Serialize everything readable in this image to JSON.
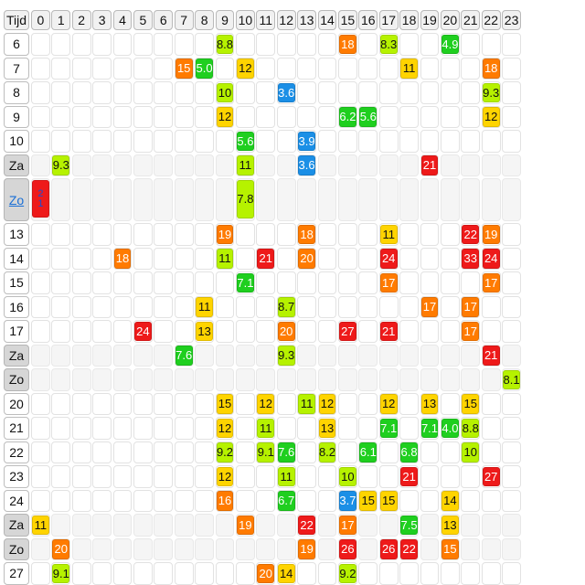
{
  "header": {
    "corner_label": "Tijd",
    "hours": [
      "0",
      "1",
      "2",
      "3",
      "4",
      "5",
      "6",
      "7",
      "8",
      "9",
      "10",
      "11",
      "12",
      "13",
      "14",
      "15",
      "16",
      "17",
      "18",
      "19",
      "20",
      "21",
      "22",
      "23"
    ]
  },
  "colors": {
    "lime": "#b6f200",
    "green": "#1fcf1f",
    "yellow": "#ffd400",
    "orange": "#ff7b00",
    "red": "#ee1a1a",
    "blue": "#1b8fe6",
    "weekend_row": "#f5f5f5"
  },
  "rows": [
    {
      "label": "6",
      "weekend": false,
      "cells": [
        {
          "h": 9,
          "v": "8.8",
          "c": "lime"
        },
        {
          "h": 15,
          "v": "18",
          "c": "orange"
        },
        {
          "h": 17,
          "v": "8.3",
          "c": "lime"
        },
        {
          "h": 20,
          "v": "4.9",
          "c": "green"
        }
      ]
    },
    {
      "label": "7",
      "weekend": false,
      "cells": [
        {
          "h": 7,
          "v": "15",
          "c": "orange"
        },
        {
          "h": 8,
          "v": "5.0",
          "c": "green"
        },
        {
          "h": 10,
          "v": "12",
          "c": "yellow"
        },
        {
          "h": 18,
          "v": "11",
          "c": "yellow"
        },
        {
          "h": 22,
          "v": "18",
          "c": "orange"
        }
      ]
    },
    {
      "label": "8",
      "weekend": false,
      "cells": [
        {
          "h": 9,
          "v": "10",
          "c": "lime"
        },
        {
          "h": 12,
          "v": "3.6",
          "c": "blue"
        },
        {
          "h": 22,
          "v": "9.3",
          "c": "lime"
        }
      ]
    },
    {
      "label": "9",
      "weekend": false,
      "cells": [
        {
          "h": 9,
          "v": "12",
          "c": "yellow"
        },
        {
          "h": 15,
          "v": "6.2",
          "c": "green"
        },
        {
          "h": 16,
          "v": "5.6",
          "c": "green"
        },
        {
          "h": 22,
          "v": "12",
          "c": "yellow"
        }
      ]
    },
    {
      "label": "10",
      "weekend": false,
      "cells": [
        {
          "h": 10,
          "v": "5.6",
          "c": "green"
        },
        {
          "h": 13,
          "v": "3.9",
          "c": "blue"
        }
      ]
    },
    {
      "label": "Za",
      "weekend": true,
      "cells": [
        {
          "h": 1,
          "v": "9.3",
          "c": "lime"
        },
        {
          "h": 10,
          "v": "11",
          "c": "lime"
        },
        {
          "h": 13,
          "v": "3.6",
          "c": "blue"
        },
        {
          "h": 19,
          "v": "21",
          "c": "red"
        }
      ]
    },
    {
      "label": "Zo",
      "weekend": true,
      "tall": true,
      "link": true,
      "cells": [
        {
          "h": 0,
          "v": "21",
          "c": "red",
          "vert": true
        },
        {
          "h": 10,
          "v": "7.8",
          "c": "lime"
        }
      ]
    },
    {
      "label": "13",
      "weekend": false,
      "cells": [
        {
          "h": 9,
          "v": "19",
          "c": "orange"
        },
        {
          "h": 13,
          "v": "18",
          "c": "orange"
        },
        {
          "h": 17,
          "v": "11",
          "c": "yellow"
        },
        {
          "h": 21,
          "v": "22",
          "c": "red"
        },
        {
          "h": 22,
          "v": "19",
          "c": "orange"
        }
      ]
    },
    {
      "label": "14",
      "weekend": false,
      "cells": [
        {
          "h": 4,
          "v": "18",
          "c": "orange"
        },
        {
          "h": 9,
          "v": "11",
          "c": "lime"
        },
        {
          "h": 11,
          "v": "21",
          "c": "red"
        },
        {
          "h": 13,
          "v": "20",
          "c": "orange"
        },
        {
          "h": 17,
          "v": "24",
          "c": "red"
        },
        {
          "h": 21,
          "v": "33",
          "c": "red"
        },
        {
          "h": 22,
          "v": "24",
          "c": "red"
        }
      ]
    },
    {
      "label": "15",
      "weekend": false,
      "cells": [
        {
          "h": 10,
          "v": "7.1",
          "c": "green"
        },
        {
          "h": 17,
          "v": "17",
          "c": "orange"
        },
        {
          "h": 22,
          "v": "17",
          "c": "orange"
        }
      ]
    },
    {
      "label": "16",
      "weekend": false,
      "cells": [
        {
          "h": 8,
          "v": "11",
          "c": "yellow"
        },
        {
          "h": 12,
          "v": "8.7",
          "c": "lime"
        },
        {
          "h": 19,
          "v": "17",
          "c": "orange"
        },
        {
          "h": 21,
          "v": "17",
          "c": "orange"
        }
      ]
    },
    {
      "label": "17",
      "weekend": false,
      "cells": [
        {
          "h": 5,
          "v": "24",
          "c": "red"
        },
        {
          "h": 8,
          "v": "13",
          "c": "yellow"
        },
        {
          "h": 12,
          "v": "20",
          "c": "orange"
        },
        {
          "h": 15,
          "v": "27",
          "c": "red"
        },
        {
          "h": 17,
          "v": "21",
          "c": "red"
        },
        {
          "h": 21,
          "v": "17",
          "c": "orange"
        }
      ]
    },
    {
      "label": "Za",
      "weekend": true,
      "cells": [
        {
          "h": 7,
          "v": "7.6",
          "c": "green"
        },
        {
          "h": 12,
          "v": "9.3",
          "c": "lime"
        },
        {
          "h": 22,
          "v": "21",
          "c": "red"
        }
      ]
    },
    {
      "label": "Zo",
      "weekend": true,
      "cells": [
        {
          "h": 23,
          "v": "8.1",
          "c": "lime"
        }
      ]
    },
    {
      "label": "20",
      "weekend": false,
      "cells": [
        {
          "h": 9,
          "v": "15",
          "c": "yellow"
        },
        {
          "h": 11,
          "v": "12",
          "c": "yellow"
        },
        {
          "h": 13,
          "v": "11",
          "c": "lime"
        },
        {
          "h": 14,
          "v": "12",
          "c": "yellow"
        },
        {
          "h": 17,
          "v": "12",
          "c": "yellow"
        },
        {
          "h": 19,
          "v": "13",
          "c": "yellow"
        },
        {
          "h": 21,
          "v": "15",
          "c": "yellow"
        }
      ]
    },
    {
      "label": "21",
      "weekend": false,
      "cells": [
        {
          "h": 9,
          "v": "12",
          "c": "yellow"
        },
        {
          "h": 11,
          "v": "11",
          "c": "lime"
        },
        {
          "h": 14,
          "v": "13",
          "c": "yellow"
        },
        {
          "h": 17,
          "v": "7.1",
          "c": "green"
        },
        {
          "h": 19,
          "v": "7.1",
          "c": "green"
        },
        {
          "h": 20,
          "v": "4.0",
          "c": "green"
        },
        {
          "h": 21,
          "v": "8.8",
          "c": "lime"
        }
      ]
    },
    {
      "label": "22",
      "weekend": false,
      "cells": [
        {
          "h": 9,
          "v": "9.2",
          "c": "lime"
        },
        {
          "h": 11,
          "v": "9.1",
          "c": "lime"
        },
        {
          "h": 12,
          "v": "7.6",
          "c": "green"
        },
        {
          "h": 14,
          "v": "8.2",
          "c": "lime"
        },
        {
          "h": 16,
          "v": "6.1",
          "c": "green"
        },
        {
          "h": 18,
          "v": "6.8",
          "c": "green"
        },
        {
          "h": 21,
          "v": "10",
          "c": "lime"
        }
      ]
    },
    {
      "label": "23",
      "weekend": false,
      "cells": [
        {
          "h": 9,
          "v": "12",
          "c": "yellow"
        },
        {
          "h": 12,
          "v": "11",
          "c": "lime"
        },
        {
          "h": 15,
          "v": "10",
          "c": "lime"
        },
        {
          "h": 18,
          "v": "21",
          "c": "red"
        },
        {
          "h": 22,
          "v": "27",
          "c": "red"
        }
      ]
    },
    {
      "label": "24",
      "weekend": false,
      "cells": [
        {
          "h": 9,
          "v": "16",
          "c": "orange"
        },
        {
          "h": 12,
          "v": "6.7",
          "c": "green"
        },
        {
          "h": 15,
          "v": "3.7",
          "c": "blue"
        },
        {
          "h": 16,
          "v": "15",
          "c": "yellow"
        },
        {
          "h": 17,
          "v": "15",
          "c": "yellow"
        },
        {
          "h": 20,
          "v": "14",
          "c": "yellow"
        }
      ]
    },
    {
      "label": "Za",
      "weekend": true,
      "cells": [
        {
          "h": 0,
          "v": "11",
          "c": "yellow"
        },
        {
          "h": 10,
          "v": "19",
          "c": "orange"
        },
        {
          "h": 13,
          "v": "22",
          "c": "red"
        },
        {
          "h": 15,
          "v": "17",
          "c": "orange"
        },
        {
          "h": 18,
          "v": "7.5",
          "c": "green"
        },
        {
          "h": 20,
          "v": "13",
          "c": "yellow"
        }
      ]
    },
    {
      "label": "Zo",
      "weekend": true,
      "cells": [
        {
          "h": 1,
          "v": "20",
          "c": "orange"
        },
        {
          "h": 13,
          "v": "19",
          "c": "orange"
        },
        {
          "h": 15,
          "v": "26",
          "c": "red"
        },
        {
          "h": 17,
          "v": "26",
          "c": "red"
        },
        {
          "h": 18,
          "v": "22",
          "c": "red"
        },
        {
          "h": 20,
          "v": "15",
          "c": "orange"
        }
      ]
    },
    {
      "label": "27",
      "weekend": false,
      "cells": [
        {
          "h": 1,
          "v": "9.1",
          "c": "lime"
        },
        {
          "h": 11,
          "v": "20",
          "c": "orange"
        },
        {
          "h": 12,
          "v": "14",
          "c": "yellow"
        },
        {
          "h": 15,
          "v": "9.2",
          "c": "lime"
        }
      ]
    }
  ]
}
